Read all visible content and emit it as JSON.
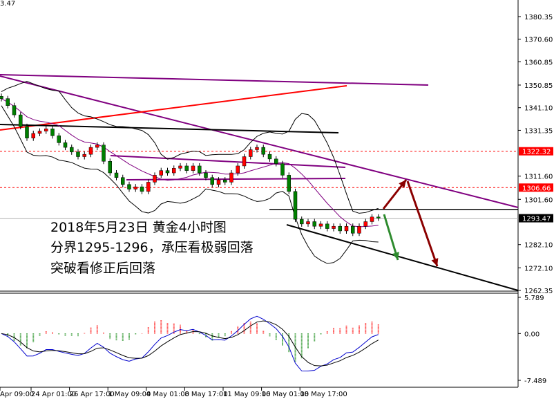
{
  "chart_data": {
    "type": "candlestick",
    "symbol_price_partial": "3.47",
    "annotations": [
      "2018年5月23日  黄金4小时图",
      "分界1295-1296，承压看极弱回落",
      "突破看修正后回落"
    ],
    "price_axis": {
      "ticks": [
        "1380.35",
        "1370.60",
        "1360.85",
        "1350.85",
        "1341.10",
        "1331.35",
        "1311.60",
        "1301.60",
        "1282.10",
        "1272.10",
        "1262.35"
      ],
      "ylim": [
        1262.35,
        1380.35
      ]
    },
    "price_labels": [
      {
        "value": "1322.32",
        "color": "#ff0000"
      },
      {
        "value": "1306.66",
        "color": "#ff0000"
      },
      {
        "value": "1293.47",
        "color": "#000000"
      }
    ],
    "time_axis": [
      "Apr 09:00",
      "24 Apr 01:00",
      "26 Apr 17:00",
      "1 May 09:00",
      "4 May 01:00",
      "8 May 17:00",
      "11 May 09:00",
      "16 May 01:00",
      "18 May 17:00"
    ],
    "closes": [
      1345,
      1342,
      1338,
      1333,
      1328,
      1330,
      1331,
      1332,
      1329,
      1326,
      1324,
      1322,
      1320,
      1321,
      1324,
      1325,
      1318,
      1313,
      1311,
      1308,
      1306,
      1307,
      1305,
      1309,
      1312,
      1314,
      1313,
      1315,
      1316,
      1314,
      1316,
      1313,
      1311,
      1308,
      1310,
      1309,
      1313,
      1316,
      1320,
      1323,
      1324,
      1321,
      1319,
      1317,
      1312,
      1305,
      1293,
      1291,
      1292,
      1290,
      1291,
      1289,
      1290,
      1288,
      1290,
      1287,
      1290,
      1292,
      1294,
      1293.5
    ],
    "macd_axis": {
      "ticks": [
        "5.789",
        "0.00",
        "-7.489"
      ],
      "ylim": [
        -7.489,
        5.789
      ]
    },
    "colors": {
      "bull": "#ff0000",
      "bear": "#008000",
      "trend_purple": "#800080",
      "trend_red": "#ff0000",
      "arrow_red": "#8b0000",
      "arrow_green": "#2e8b2e"
    }
  }
}
